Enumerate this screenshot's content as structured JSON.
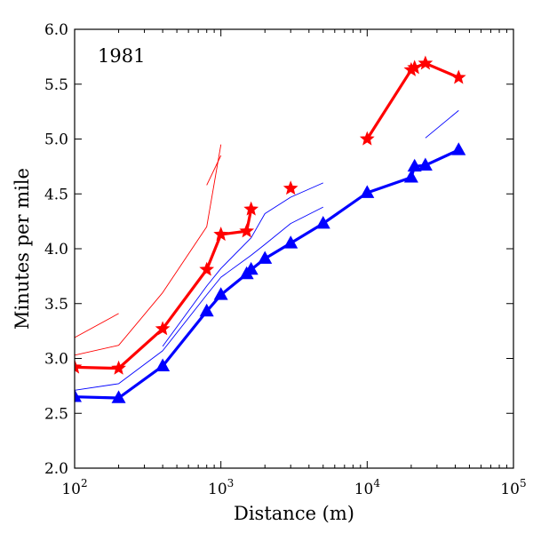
{
  "chart_data": {
    "type": "line",
    "annotation": "1981",
    "xlabel": "Distance (m)",
    "ylabel": "Minutes per mile",
    "xscale": "log",
    "xlim": [
      100,
      100000
    ],
    "ylim": [
      2.0,
      6.0
    ],
    "grid": false,
    "x_ticks": [
      {
        "value": 100,
        "base": "10",
        "exp": "2"
      },
      {
        "value": 1000,
        "base": "10",
        "exp": "3"
      },
      {
        "value": 10000,
        "base": "10",
        "exp": "4"
      },
      {
        "value": 100000,
        "base": "10",
        "exp": "5"
      }
    ],
    "y_ticks": [
      {
        "value": 2.0,
        "label": "2.0"
      },
      {
        "value": 2.5,
        "label": "2.5"
      },
      {
        "value": 3.0,
        "label": "3.0"
      },
      {
        "value": 3.5,
        "label": "3.5"
      },
      {
        "value": 4.0,
        "label": "4.0"
      },
      {
        "value": 4.5,
        "label": "4.5"
      },
      {
        "value": 5.0,
        "label": "5.0"
      },
      {
        "value": 5.5,
        "label": "5.5"
      },
      {
        "value": 6.0,
        "label": "6.0"
      }
    ],
    "series": [
      {
        "color": "#ff0000",
        "marker": "star",
        "style": "thick",
        "segments": [
          [
            [
              100,
              2.92
            ],
            [
              200,
              2.91
            ],
            [
              400,
              3.27
            ],
            [
              800,
              3.81
            ],
            [
              1000,
              4.13
            ],
            [
              1500,
              4.16
            ],
            [
              1609,
              4.36
            ]
          ],
          [
            [
              3000,
              4.55
            ]
          ],
          [
            [
              10000,
              5.0
            ],
            [
              20000,
              5.63
            ],
            [
              21097,
              5.65
            ],
            [
              25000,
              5.69
            ],
            [
              42195,
              5.56
            ]
          ]
        ]
      },
      {
        "color": "#0000ff",
        "marker": "triangle",
        "style": "thick",
        "segments": [
          [
            [
              100,
              2.65
            ],
            [
              200,
              2.64
            ],
            [
              400,
              2.93
            ],
            [
              800,
              3.43
            ],
            [
              1000,
              3.58
            ],
            [
              1500,
              3.77
            ],
            [
              1609,
              3.81
            ],
            [
              2000,
              3.91
            ],
            [
              3000,
              4.05
            ],
            [
              5000,
              4.23
            ],
            [
              10000,
              4.51
            ],
            [
              20000,
              4.65
            ],
            [
              21097,
              4.75
            ],
            [
              25000,
              4.76
            ],
            [
              42195,
              4.9
            ]
          ]
        ]
      },
      {
        "color": "#ff0000",
        "marker": "none",
        "style": "thin",
        "segments": [
          [
            [
              100,
              3.19
            ],
            [
              200,
              3.41
            ]
          ],
          [
            [
              100,
              3.03
            ],
            [
              200,
              3.12
            ],
            [
              400,
              3.6
            ],
            [
              800,
              4.2
            ],
            [
              1000,
              4.95
            ]
          ],
          [
            [
              800,
              4.58
            ],
            [
              1000,
              4.85
            ]
          ]
        ]
      },
      {
        "color": "#0000ff",
        "marker": "none",
        "style": "thin",
        "segments": [
          [
            [
              100,
              2.71
            ],
            [
              200,
              2.77
            ],
            [
              400,
              3.07
            ],
            [
              800,
              3.58
            ],
            [
              1000,
              3.74
            ],
            [
              1609,
              3.94
            ],
            [
              2000,
              4.04
            ],
            [
              3000,
              4.23
            ],
            [
              5000,
              4.38
            ]
          ],
          [
            [
              400,
              3.11
            ],
            [
              800,
              3.66
            ],
            [
              1000,
              3.82
            ],
            [
              1609,
              4.1
            ],
            [
              2000,
              4.32
            ],
            [
              3000,
              4.47
            ],
            [
              5000,
              4.6
            ]
          ],
          [
            [
              25000,
              5.01
            ],
            [
              42195,
              5.26
            ]
          ]
        ]
      }
    ]
  }
}
